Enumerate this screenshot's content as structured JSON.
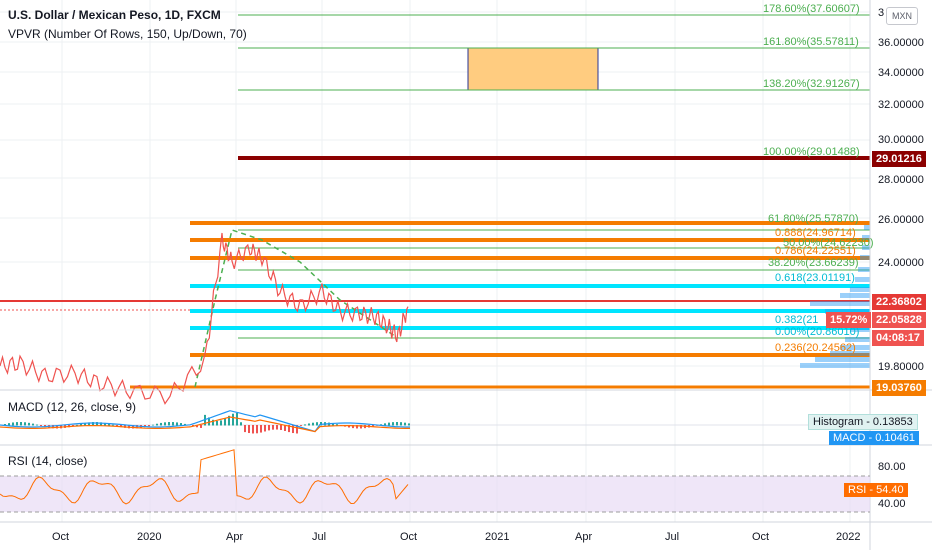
{
  "legend": {
    "symbol": "U.S. Dollar / Mexican Peso, 1D, FXCM",
    "vpvr": "VPVR (Number Of Rows, 150, Up/Down, 70)",
    "macd": "MACD (12, 26, close, 9)",
    "rsi": "RSI (14, close)"
  },
  "currency_badge": "MXN",
  "price_axis": {
    "ticks": [
      "36.00000",
      "34.00000",
      "32.00000",
      "30.00000",
      "28.00000",
      "26.00000",
      "24.00000",
      "19.80000"
    ],
    "top_partial": "3",
    "bottom_tag": "19.03760"
  },
  "price_tags": [
    {
      "label": "29.01216",
      "color": "#8b0000"
    },
    {
      "label": "22.36802",
      "color": "#e53935"
    },
    {
      "label": "22.05828",
      "color": "#ef5350"
    },
    {
      "label": "04:08:17",
      "color": "#ef5350"
    },
    {
      "label": "15.72%",
      "color": "#ef5350"
    }
  ],
  "fib_levels": [
    {
      "label": "178.60%(37.60607)",
      "color": "#4caf50"
    },
    {
      "label": "161.80%(35.57811)",
      "color": "#4caf50"
    },
    {
      "label": "138.20%(32.91267)",
      "color": "#4caf50"
    },
    {
      "label": "100.00%(29.01488)",
      "color": "#4caf50"
    },
    {
      "label": "61.80%(25.57870)",
      "color": "#4caf50"
    },
    {
      "label": "0.888(24.96714)",
      "color": "#f57c00"
    },
    {
      "label": "50.00%(24.62230)",
      "color": "#4caf50"
    },
    {
      "label": "0.786(24.22551)",
      "color": "#f57c00"
    },
    {
      "label": "38.20%(23.66239)",
      "color": "#4caf50"
    },
    {
      "label": "0.618(23.01191)",
      "color": "#00bcd4"
    },
    {
      "label": "0.382(21",
      "color": "#00bcd4"
    },
    {
      "label": "0.00%(20.86010)",
      "color": "#00bcd4"
    },
    {
      "label": "0.236(20.24562)",
      "color": "#f57c00"
    }
  ],
  "macd_panel": {
    "histogram_label": "Histogram",
    "histogram_value": "0.13853",
    "macd_label": "MACD",
    "macd_value": "0.10461"
  },
  "rsi_panel": {
    "ticks": [
      "80.00",
      "40.00"
    ],
    "rsi_label": "RSI",
    "rsi_value": "54.40"
  },
  "time_axis": [
    "Oct",
    "2020",
    "Apr",
    "Jul",
    "Oct",
    "2021",
    "Apr",
    "Jul",
    "Oct",
    "2022"
  ],
  "colors": {
    "candle": "#ef5350",
    "fib_green": "#4caf50",
    "fib_orange": "#f57c00",
    "fib_cyan": "#00e5ff",
    "dark_red": "#8b0000",
    "target_box": "#ffcc80",
    "rsi_band": "#e8dcf5",
    "vpvr": "#2196f3"
  },
  "chart_data": {
    "type": "line",
    "title": "U.S. Dollar / Mexican Peso, 1D, FXCM",
    "x": [
      "2019-08",
      "2019-09",
      "2019-10",
      "2019-11",
      "2019-12",
      "2020-01",
      "2020-02",
      "2020-03-10",
      "2020-03-25",
      "2020-04-05",
      "2020-04-20",
      "2020-05-01",
      "2020-05-20",
      "2020-06-10",
      "2020-07-01",
      "2020-07-20",
      "2020-08-10",
      "2020-08-25",
      "2020-09-10",
      "2020-09-23",
      "2020-10-01"
    ],
    "series": [
      {
        "values": [
          19.8,
          19.9,
          19.4,
          19.5,
          19.1,
          18.8,
          18.6,
          20.0,
          25.0,
          24.0,
          24.6,
          24.2,
          22.8,
          22.2,
          22.8,
          22.0,
          21.9,
          21.8,
          21.4,
          21.0,
          22.2
        ]
      }
    ],
    "ylim": [
      19.0,
      38.0
    ],
    "price_levels": [
      37.60607,
      35.57811,
      32.91267,
      29.01488,
      25.5787,
      24.96714,
      24.6223,
      24.22551,
      23.66239,
      23.01191,
      20.8601,
      20.24562
    ],
    "macd": {
      "histogram": 0.13853,
      "macd": 0.10461
    },
    "rsi": {
      "value": 54.4,
      "levels": [
        80,
        40
      ]
    }
  }
}
